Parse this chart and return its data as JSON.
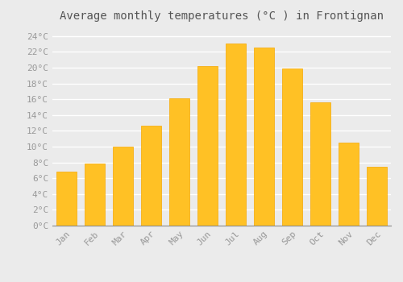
{
  "title": "Average monthly temperatures (°C ) in Frontignan",
  "months": [
    "Jan",
    "Feb",
    "Mar",
    "Apr",
    "May",
    "Jun",
    "Jul",
    "Aug",
    "Sep",
    "Oct",
    "Nov",
    "Dec"
  ],
  "values": [
    6.8,
    7.9,
    10.0,
    12.7,
    16.1,
    20.2,
    23.1,
    22.6,
    19.9,
    15.6,
    10.5,
    7.4
  ],
  "bar_color_top": "#FFC125",
  "bar_color_bottom": "#FFAA00",
  "bar_edge_color": "#F5A800",
  "background_color": "#EBEBEB",
  "grid_color": "#FFFFFF",
  "text_color": "#999999",
  "title_color": "#555555",
  "ylim": [
    0,
    25
  ],
  "title_fontsize": 10,
  "tick_fontsize": 8,
  "font_family": "monospace"
}
